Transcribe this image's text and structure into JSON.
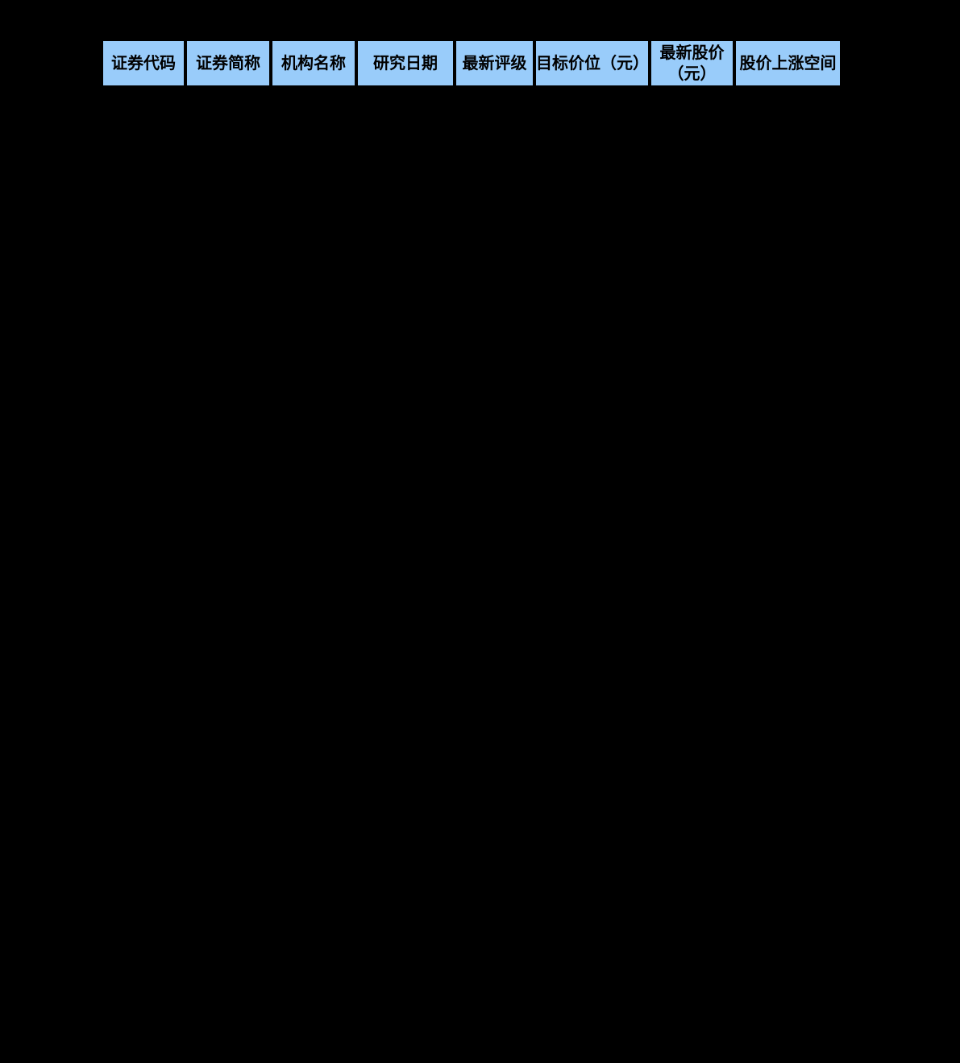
{
  "colors": {
    "background": "#000000",
    "header_fill": "#99CCFA",
    "grid": "#000000",
    "text": "#000000"
  },
  "table": {
    "description": "stock research rating table header",
    "columns": [
      {
        "label": "证券代码"
      },
      {
        "label": "证券简称"
      },
      {
        "label": "机构名称"
      },
      {
        "label": "研究日期"
      },
      {
        "label": "最新评级"
      },
      {
        "label": "目标价位（元）"
      },
      {
        "label": "最新股价\n（元）"
      },
      {
        "label": "股价上涨空间"
      }
    ],
    "rows": []
  }
}
